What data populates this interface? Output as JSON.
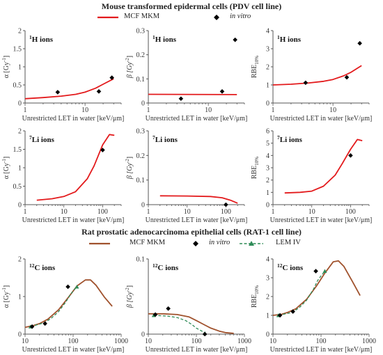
{
  "section1": {
    "title": "Mouse transformed epidermal cells (PDV cell line)",
    "legend": {
      "model": "MCF MKM",
      "exp": "in vitro"
    }
  },
  "section2": {
    "title": "Rat prostatic adenocarcinoma epithelial cells (RAT-1 cell line)",
    "legend": {
      "model": "MCF MKM",
      "exp": "in vitro",
      "lem": "LEM IV"
    }
  },
  "colors": {
    "mkm1": "#e31a1c",
    "mkm2": "#a0522d",
    "lem": "#2e8b57",
    "exp": "#000000",
    "axis": "#555555"
  },
  "chart_data": [
    {
      "id": "pdv-h-alpha",
      "type": "line",
      "title": "1H ions",
      "xlabel": "Unrestricted LET in water [keV/μm]",
      "ylabel": "α [Gy-1]",
      "xscale": "log",
      "xlim": [
        1,
        40
      ],
      "ylim": [
        0,
        2
      ],
      "xticks": [
        1,
        10
      ],
      "xticklabels": [
        "1",
        "10"
      ],
      "yticks": [
        0,
        0.5,
        1,
        1.5,
        2
      ],
      "yticklabels": [
        "0",
        "0.5",
        "1",
        "1.5",
        "2"
      ],
      "series": [
        {
          "name": "MCF MKM",
          "kind": "line",
          "x": [
            1,
            2,
            4,
            7,
            10,
            15,
            20,
            30
          ],
          "y": [
            0.12,
            0.15,
            0.19,
            0.24,
            0.3,
            0.41,
            0.52,
            0.67
          ]
        },
        {
          "name": "in vitro",
          "kind": "points",
          "x": [
            3.5,
            17,
            28
          ],
          "y": [
            0.3,
            0.32,
            0.7
          ]
        }
      ]
    },
    {
      "id": "pdv-h-beta",
      "type": "line",
      "title": "1H ions",
      "xlabel": "Unrestricted LET in water [keV/μm]",
      "ylabel": "β [Gy-2]",
      "xscale": "log",
      "xlim": [
        1,
        40
      ],
      "ylim": [
        0,
        0.3
      ],
      "xticks": [
        1,
        10
      ],
      "xticklabels": [
        "1",
        "10"
      ],
      "yticks": [
        0,
        0.1,
        0.2,
        0.3
      ],
      "yticklabels": [
        "0",
        "0.1",
        "0.2",
        "0.3"
      ],
      "series": [
        {
          "name": "MCF MKM",
          "kind": "line",
          "x": [
            1,
            30
          ],
          "y": [
            0.036,
            0.035
          ]
        },
        {
          "name": "in vitro",
          "kind": "points",
          "x": [
            3.5,
            17,
            28
          ],
          "y": [
            0.018,
            0.048,
            0.262
          ]
        }
      ]
    },
    {
      "id": "pdv-h-rbe",
      "type": "line",
      "title": "1H ions",
      "xlabel": "Unrestricted LET in water [keV/μm]",
      "ylabel": "RBE10%",
      "xscale": "log",
      "xlim": [
        1,
        40
      ],
      "ylim": [
        0,
        4
      ],
      "xticks": [
        1,
        10
      ],
      "xticklabels": [
        "1",
        "10"
      ],
      "yticks": [
        0,
        1,
        2,
        3,
        4
      ],
      "yticklabels": [
        "0",
        "1",
        "2",
        "3",
        "4"
      ],
      "series": [
        {
          "name": "MCF MKM",
          "kind": "line",
          "x": [
            1,
            2,
            4,
            7,
            10,
            15,
            20,
            30
          ],
          "y": [
            1.0,
            1.04,
            1.11,
            1.2,
            1.3,
            1.5,
            1.7,
            2.07
          ]
        },
        {
          "name": "in vitro",
          "kind": "points",
          "x": [
            3.5,
            17,
            28
          ],
          "y": [
            1.12,
            1.42,
            3.3
          ]
        }
      ]
    },
    {
      "id": "pdv-li-alpha",
      "type": "line",
      "title": "7Li ions",
      "xlabel": "Unrestricted LET in water [keV/μm]",
      "ylabel": "α [Gy-1]",
      "xscale": "log",
      "xlim": [
        1,
        300
      ],
      "ylim": [
        0,
        2
      ],
      "xticks": [
        1,
        10,
        100
      ],
      "xticklabels": [
        "1",
        "10",
        "100"
      ],
      "yticks": [
        0,
        0.5,
        1,
        1.5,
        2
      ],
      "yticklabels": [
        "0",
        "0.5",
        "1",
        "1.5",
        "2"
      ],
      "series": [
        {
          "name": "MCF MKM",
          "kind": "line",
          "x": [
            2,
            5,
            10,
            20,
            40,
            60,
            100,
            150,
            200
          ],
          "y": [
            0.12,
            0.16,
            0.22,
            0.35,
            0.7,
            1.05,
            1.62,
            1.9,
            1.88
          ]
        },
        {
          "name": "in vitro",
          "kind": "points",
          "x": [
            100
          ],
          "y": [
            1.48
          ]
        }
      ]
    },
    {
      "id": "pdv-li-beta",
      "type": "line",
      "title": "7Li ions",
      "xlabel": "Unrestricted LET in water [keV/μm]",
      "ylabel": "β [Gy-2]",
      "xscale": "log",
      "xlim": [
        1,
        300
      ],
      "ylim": [
        0,
        0.3
      ],
      "xticks": [
        1,
        10,
        100
      ],
      "xticklabels": [
        "1",
        "10",
        "100"
      ],
      "yticks": [
        0,
        0.1,
        0.2,
        0.3
      ],
      "yticklabels": [
        "0",
        "0.1",
        "0.2",
        "0.3"
      ],
      "series": [
        {
          "name": "MCF MKM",
          "kind": "line",
          "x": [
            2,
            10,
            40,
            80,
            130,
            200
          ],
          "y": [
            0.036,
            0.035,
            0.033,
            0.028,
            0.018,
            0.006
          ]
        },
        {
          "name": "in vitro",
          "kind": "points",
          "x": [
            100
          ],
          "y": [
            0.0
          ]
        }
      ]
    },
    {
      "id": "pdv-li-rbe",
      "type": "line",
      "title": "7Li ions",
      "xlabel": "Unrestricted LET in water [keV/μm]",
      "ylabel": "RBE10%",
      "xscale": "log",
      "xlim": [
        1,
        300
      ],
      "ylim": [
        0,
        6
      ],
      "xticks": [
        1,
        10,
        100
      ],
      "xticklabels": [
        "1",
        "10",
        "100"
      ],
      "yticks": [
        0,
        1,
        2,
        3,
        4,
        5,
        6
      ],
      "yticklabels": [
        "0",
        "1",
        "2",
        "3",
        "4",
        "5",
        "6"
      ],
      "series": [
        {
          "name": "MCF MKM",
          "kind": "line",
          "x": [
            2,
            5,
            10,
            20,
            40,
            60,
            100,
            150,
            200
          ],
          "y": [
            0.95,
            1.0,
            1.1,
            1.5,
            2.4,
            3.3,
            4.5,
            5.3,
            5.2
          ]
        },
        {
          "name": "in vitro",
          "kind": "points",
          "x": [
            100
          ],
          "y": [
            4.0
          ]
        }
      ]
    },
    {
      "id": "rat-c-alpha",
      "type": "line",
      "title": "12C ions",
      "xlabel": "Unrestricted LET in water [keV/μm]",
      "ylabel": "α [Gy-1]",
      "xscale": "log",
      "xlim": [
        10,
        1000
      ],
      "ylim": [
        0,
        2
      ],
      "xticks": [
        10,
        100,
        1000
      ],
      "xticklabels": [
        "10",
        "100",
        "1000"
      ],
      "yticks": [
        0,
        1,
        2
      ],
      "yticklabels": [
        "0",
        "1",
        "2"
      ],
      "series": [
        {
          "name": "MCF MKM",
          "kind": "line",
          "x": [
            10,
            15,
            20,
            30,
            50,
            80,
            120,
            180,
            230,
            300,
            450,
            650
          ],
          "y": [
            0.18,
            0.23,
            0.28,
            0.4,
            0.65,
            0.98,
            1.28,
            1.44,
            1.44,
            1.3,
            0.98,
            0.74
          ]
        },
        {
          "name": "LEM IV",
          "kind": "dashed",
          "x": [
            13,
            25,
            35,
            50,
            70,
            85,
            100,
            120
          ],
          "y": [
            0.2,
            0.3,
            0.42,
            0.6,
            0.85,
            1.02,
            1.15,
            1.26
          ]
        },
        {
          "name": "in vitro",
          "kind": "points",
          "x": [
            14,
            26,
            78
          ],
          "y": [
            0.2,
            0.28,
            1.26
          ]
        }
      ]
    },
    {
      "id": "rat-c-beta",
      "type": "line",
      "title": "12C ions",
      "xlabel": "Unrestricted LET in water [keV/μm]",
      "ylabel": "β [Gy-2]",
      "xscale": "log",
      "xlim": [
        10,
        1000
      ],
      "ylim": [
        0,
        0.1
      ],
      "xticks": [
        10,
        100,
        1000
      ],
      "xticklabels": [
        "10",
        "100",
        "1000"
      ],
      "yticks": [
        0,
        0.1
      ],
      "yticklabels": [
        "0",
        "0.1"
      ],
      "series": [
        {
          "name": "MCF MKM",
          "kind": "line",
          "x": [
            10,
            20,
            40,
            70,
            100,
            150,
            200,
            300,
            400,
            600
          ],
          "y": [
            0.027,
            0.027,
            0.026,
            0.023,
            0.018,
            0.012,
            0.008,
            0.004,
            0.002,
            0.001
          ]
        },
        {
          "name": "LEM IV",
          "kind": "dashed",
          "x": [
            13,
            25,
            40,
            60,
            80,
            100,
            130,
            150
          ],
          "y": [
            0.025,
            0.024,
            0.022,
            0.018,
            0.013,
            0.008,
            0.004,
            0.001
          ]
        },
        {
          "name": "in vitro",
          "kind": "points",
          "x": [
            14,
            26,
            150
          ],
          "y": [
            0.026,
            0.034,
            0.0
          ]
        }
      ]
    },
    {
      "id": "rat-c-rbe",
      "type": "line",
      "title": "12C ions",
      "xlabel": "Unrestricted LET in water [keV/μm]",
      "ylabel": "RBE10%",
      "xscale": "log",
      "xlim": [
        10,
        1000
      ],
      "ylim": [
        0,
        4
      ],
      "xticks": [
        10,
        100,
        1000
      ],
      "xticklabels": [
        "10",
        "100",
        "1000"
      ],
      "yticks": [
        0,
        1,
        2,
        3,
        4
      ],
      "yticklabels": [
        "0",
        "1",
        "2",
        "3",
        "4"
      ],
      "series": [
        {
          "name": "MCF MKM",
          "kind": "line",
          "x": [
            10,
            15,
            20,
            30,
            50,
            80,
            120,
            180,
            230,
            300,
            450,
            650
          ],
          "y": [
            1.0,
            1.05,
            1.15,
            1.35,
            1.85,
            2.55,
            3.25,
            3.85,
            3.9,
            3.6,
            2.8,
            2.05
          ]
        },
        {
          "name": "LEM IV",
          "kind": "dashed",
          "x": [
            13,
            25,
            35,
            50,
            70,
            85,
            100,
            120
          ],
          "y": [
            1.0,
            1.15,
            1.4,
            1.8,
            2.4,
            2.85,
            3.1,
            3.35
          ]
        },
        {
          "name": "in vitro",
          "kind": "points",
          "x": [
            14,
            26,
            78
          ],
          "y": [
            1.0,
            1.2,
            3.35
          ]
        }
      ]
    }
  ]
}
